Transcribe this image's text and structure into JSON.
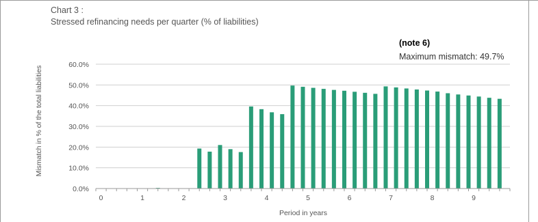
{
  "chart_data": {
    "type": "bar",
    "title": "Chart 3 :",
    "subtitle": "Stressed refinancing needs per quarter  (% of liabilities)",
    "xlabel": "Period in years",
    "ylabel": "Mismatch in % of the total liabilities",
    "x_tick_labels": [
      "0",
      "1",
      "2",
      "3",
      "4",
      "5",
      "6",
      "7",
      "8",
      "9"
    ],
    "y_tick_labels": [
      "0.0%",
      "10.0%",
      "20.0%",
      "30.0%",
      "40.0%",
      "50.0%",
      "60.0%"
    ],
    "ylim": [
      0,
      60
    ],
    "xlim": [
      0,
      10
    ],
    "grid": "horizontal",
    "bar_color": "#2a9d78",
    "quarters_x": [
      0.25,
      0.5,
      0.75,
      1.0,
      1.25,
      1.5,
      1.75,
      2.0,
      2.25,
      2.5,
      2.75,
      3.0,
      3.25,
      3.5,
      3.75,
      4.0,
      4.25,
      4.5,
      4.75,
      5.0,
      5.25,
      5.5,
      5.75,
      6.0,
      6.25,
      6.5,
      6.75,
      7.0,
      7.25,
      7.5,
      7.75,
      8.0,
      8.25,
      8.5,
      8.75,
      9.0,
      9.25,
      9.5,
      9.75
    ],
    "values": [
      0,
      0,
      0,
      0,
      0,
      0.3,
      0,
      0,
      0,
      19.3,
      17.8,
      21.0,
      19.0,
      17.6,
      39.6,
      38.3,
      36.8,
      35.9,
      49.7,
      49.1,
      48.6,
      48.1,
      47.6,
      47.2,
      46.7,
      46.2,
      45.7,
      49.3,
      48.8,
      48.3,
      47.8,
      47.3,
      46.8,
      46.0,
      45.4,
      44.9,
      44.4,
      43.8,
      43.3
    ],
    "annotations": [
      {
        "label": "(note 6)"
      },
      {
        "label": "Maximum mismatch: 49.7%"
      }
    ]
  }
}
